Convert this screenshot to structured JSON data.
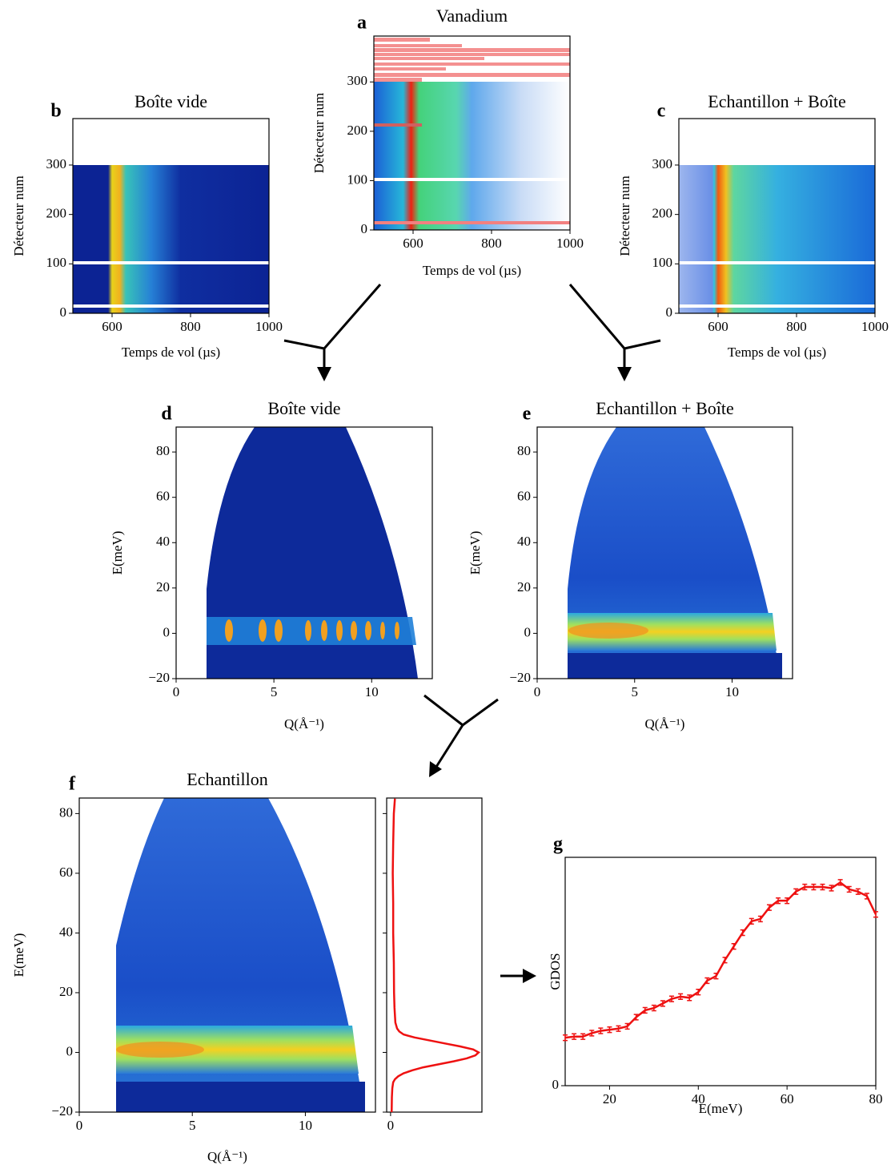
{
  "chart_data": [
    {
      "type": "heatmap",
      "panel": "a",
      "title": "Vanadium",
      "x_label": "Temps de vol (µs)",
      "y_label": "Détecteur num",
      "xlim": [
        500,
        1000
      ],
      "ylim": [
        0,
        393
      ],
      "xticks": [
        600,
        800,
        1000
      ],
      "yticks": [
        0,
        100,
        200,
        300
      ]
    },
    {
      "type": "heatmap",
      "panel": "b",
      "title": "Boîte vide",
      "x_label": "Temps de vol (µs)",
      "y_label": "Détecteur num",
      "xlim": [
        500,
        1000
      ],
      "ylim": [
        0,
        394
      ],
      "xticks": [
        600,
        800,
        1000
      ],
      "yticks": [
        0,
        100,
        200,
        300
      ]
    },
    {
      "type": "heatmap",
      "panel": "c",
      "title": "Echantillon + Boîte",
      "x_label": "Temps de vol (µs)",
      "y_label": "Détecteur num",
      "xlim": [
        500,
        1000
      ],
      "ylim": [
        0,
        394
      ],
      "xticks": [
        600,
        800,
        1000
      ],
      "yticks": [
        0,
        100,
        200,
        300
      ]
    },
    {
      "type": "heatmap",
      "panel": "d",
      "title": "Boîte vide",
      "x_label": "Q(Å⁻¹)",
      "y_label": "E(meV)",
      "xlim": [
        0,
        13.1
      ],
      "ylim": [
        -20,
        91
      ],
      "xticks": [
        0,
        5,
        10
      ],
      "yticks": [
        {
          "value": -20,
          "label": "−20"
        },
        0,
        20,
        40,
        60,
        80
      ]
    },
    {
      "type": "heatmap",
      "panel": "e",
      "title": "Echantillon + Boîte",
      "x_label": "Q(Å⁻¹)",
      "y_label": "E(meV)",
      "xlim": [
        0,
        13.1
      ],
      "ylim": [
        -20,
        91
      ],
      "xticks": [
        0,
        5,
        10
      ],
      "yticks": [
        {
          "value": -20,
          "label": "−20"
        },
        0,
        20,
        40,
        60,
        80
      ]
    },
    {
      "type": "heatmap",
      "panel": "f",
      "title": "Echantillon",
      "x_label": "Q(Å⁻¹)",
      "y_label": "E(meV)",
      "xlim": [
        0,
        13.1
      ],
      "ylim": [
        -20,
        85.2
      ],
      "xticks": [
        0,
        5,
        10
      ],
      "yticks": [
        {
          "value": -20,
          "label": "−20"
        },
        0,
        20,
        40,
        60,
        80
      ]
    },
    {
      "type": "profile",
      "xlim": [
        -0.18,
        4.2
      ],
      "ylim": [
        -20,
        85.2
      ],
      "xticks": [
        0
      ],
      "yticks": [
        -20,
        0,
        20,
        40,
        60,
        80
      ],
      "ytick_labels": false,
      "color": "#ee1111",
      "y": [
        -20,
        -15,
        -12,
        -10,
        -9,
        -8,
        -7,
        -6,
        -5,
        -4,
        -3,
        -2,
        -1,
        0,
        1,
        2,
        3,
        4,
        5,
        6,
        7,
        8,
        10,
        15,
        20,
        30,
        40,
        50,
        60,
        70,
        80,
        85
      ],
      "values": [
        0.05,
        0.06,
        0.08,
        0.12,
        0.2,
        0.35,
        0.6,
        1.0,
        1.5,
        2.2,
        2.9,
        3.5,
        3.9,
        4.05,
        3.8,
        3.2,
        2.5,
        1.8,
        1.1,
        0.6,
        0.4,
        0.3,
        0.22,
        0.18,
        0.16,
        0.15,
        0.12,
        0.12,
        0.1,
        0.12,
        0.15,
        0.2
      ]
    },
    {
      "type": "line",
      "panel": "g",
      "x_label": "E(meV)",
      "y_label": "GDOS",
      "color": "#ee1111",
      "xlim": [
        10,
        80
      ],
      "ylim": [
        0,
        1
      ],
      "xticks": [
        20,
        40,
        60,
        80
      ],
      "yticks": [
        0
      ],
      "x": [
        10,
        12,
        14,
        16,
        18,
        20,
        22,
        24,
        26,
        28,
        30,
        32,
        34,
        36,
        38,
        40,
        42,
        44,
        46,
        48,
        50,
        52,
        54,
        56,
        58,
        60,
        62,
        64,
        66,
        68,
        70,
        72,
        74,
        76,
        78,
        80
      ],
      "values": [
        0.21,
        0.215,
        0.215,
        0.23,
        0.24,
        0.245,
        0.25,
        0.26,
        0.3,
        0.33,
        0.34,
        0.36,
        0.38,
        0.39,
        0.385,
        0.41,
        0.46,
        0.48,
        0.55,
        0.61,
        0.67,
        0.72,
        0.73,
        0.78,
        0.81,
        0.81,
        0.85,
        0.87,
        0.87,
        0.87,
        0.865,
        0.89,
        0.86,
        0.85,
        0.83,
        0.75
      ],
      "errors": [
        0.012,
        0.012,
        0.012,
        0.012,
        0.012,
        0.012,
        0.012,
        0.012,
        0.012,
        0.012,
        0.012,
        0.012,
        0.012,
        0.012,
        0.012,
        0.012,
        0.012,
        0.012,
        0.012,
        0.012,
        0.012,
        0.012,
        0.012,
        0.012,
        0.012,
        0.012,
        0.012,
        0.012,
        0.012,
        0.012,
        0.012,
        0.012,
        0.012,
        0.012,
        0.012,
        0.012
      ]
    }
  ]
}
